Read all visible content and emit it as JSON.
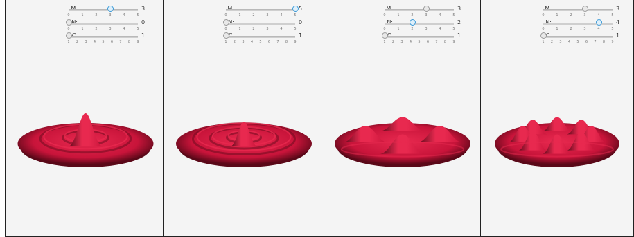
{
  "panels": [
    {
      "controls": [
        {
          "label": "M:",
          "value": "3",
          "min": 0,
          "max": 5,
          "current": 3,
          "state": "active",
          "ticks": [
            "0",
            "1",
            "2",
            "3",
            "4",
            "5"
          ]
        },
        {
          "label": "N:",
          "value": "0",
          "min": 0,
          "max": 5,
          "current": 0,
          "state": "inactive",
          "ticks": [
            "0",
            "1",
            "2",
            "3",
            "4",
            "5"
          ]
        },
        {
          "label": "C:",
          "value": "1",
          "min": 1,
          "max": 9,
          "current": 1,
          "state": "inactive",
          "ticks": [
            "1",
            "2",
            "3",
            "4",
            "5",
            "6",
            "7",
            "8",
            "9"
          ]
        }
      ],
      "surface": {
        "ring_count": 2,
        "bump_count": 0
      }
    },
    {
      "controls": [
        {
          "label": "M:",
          "value": "5",
          "min": 0,
          "max": 5,
          "current": 5,
          "state": "active",
          "ticks": [
            "0",
            "1",
            "2",
            "3",
            "4",
            "5"
          ]
        },
        {
          "label": "N:",
          "value": "0",
          "min": 0,
          "max": 5,
          "current": 0,
          "state": "inactive",
          "ticks": [
            "0",
            "1",
            "2",
            "3",
            "4",
            "5"
          ]
        },
        {
          "label": "C:",
          "value": "1",
          "min": 1,
          "max": 9,
          "current": 1,
          "state": "inactive",
          "ticks": [
            "1",
            "2",
            "3",
            "4",
            "5",
            "6",
            "7",
            "8",
            "9"
          ]
        }
      ],
      "surface": {
        "ring_count": 3,
        "bump_count": 0
      }
    },
    {
      "controls": [
        {
          "label": "M:",
          "value": "3",
          "min": 0,
          "max": 5,
          "current": 3,
          "state": "inactive",
          "ticks": [
            "0",
            "1",
            "2",
            "3",
            "4",
            "5"
          ]
        },
        {
          "label": "N:",
          "value": "2",
          "min": 0,
          "max": 5,
          "current": 2,
          "state": "active",
          "ticks": [
            "0",
            "1",
            "2",
            "3",
            "4",
            "5"
          ]
        },
        {
          "label": "C:",
          "value": "1",
          "min": 1,
          "max": 9,
          "current": 1,
          "state": "inactive",
          "ticks": [
            "1",
            "2",
            "3",
            "4",
            "5",
            "6",
            "7",
            "8",
            "9"
          ]
        }
      ],
      "surface": {
        "ring_count": 1,
        "bump_count": 4
      }
    },
    {
      "controls": [
        {
          "label": "M:",
          "value": "3",
          "min": 0,
          "max": 5,
          "current": 3,
          "state": "inactive",
          "ticks": [
            "0",
            "1",
            "2",
            "3",
            "4",
            "5"
          ]
        },
        {
          "label": "N:",
          "value": "4",
          "min": 0,
          "max": 5,
          "current": 4,
          "state": "active",
          "ticks": [
            "0",
            "1",
            "2",
            "3",
            "4",
            "5"
          ]
        },
        {
          "label": "C:",
          "value": "1",
          "min": 1,
          "max": 9,
          "current": 1,
          "state": "inactive",
          "ticks": [
            "1",
            "2",
            "3",
            "4",
            "5",
            "6",
            "7",
            "8",
            "9"
          ]
        }
      ],
      "surface": {
        "ring_count": 1,
        "bump_count": 8
      }
    }
  ],
  "colors": {
    "surface_light": "#e8294f",
    "surface_mid": "#c8143a",
    "surface_dark": "#5a0818",
    "background": "#f4f4f4"
  }
}
